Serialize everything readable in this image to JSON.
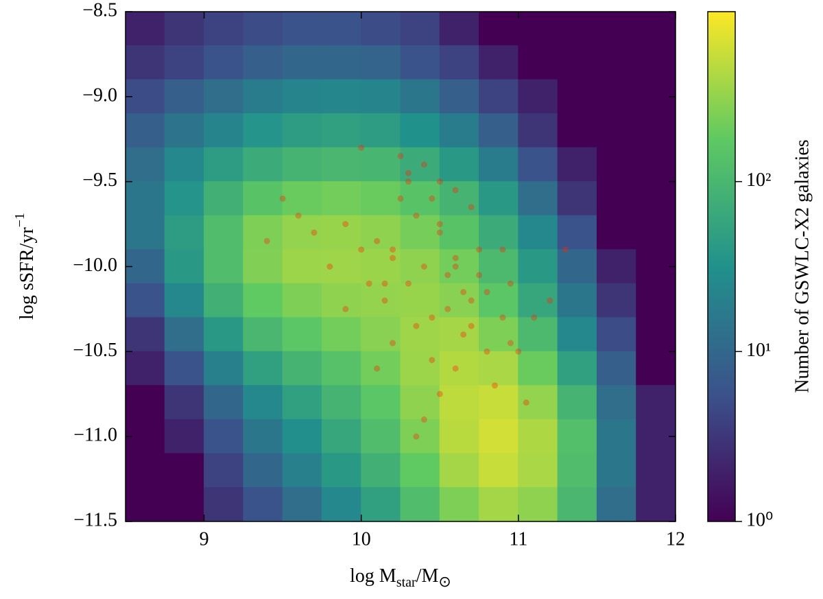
{
  "chart_data": {
    "type": "hexbin",
    "xlabel": [
      "log M",
      "star",
      "/M",
      "⊙"
    ],
    "ylabel": [
      "log sSFR/yr",
      "−1"
    ],
    "xlim": [
      8.5,
      12
    ],
    "ylim": [
      -11.5,
      -8.5
    ],
    "xticks": [
      9,
      10,
      11,
      12
    ],
    "yticks": [
      {
        "value": -8.5,
        "label": "−8.5"
      },
      {
        "value": -9.0,
        "label": "−9.0"
      },
      {
        "value": -9.5,
        "label": "−9.5"
      },
      {
        "value": -10.0,
        "label": "−10.0"
      },
      {
        "value": -10.5,
        "label": "−10.5"
      },
      {
        "value": -11.0,
        "label": "−11.0"
      },
      {
        "value": -11.5,
        "label": "−11.5"
      }
    ],
    "hexbin": {
      "colormap": "viridis",
      "log_scale": true,
      "clim": [
        1,
        1000
      ],
      "x": [
        8.625,
        8.875,
        9.125,
        9.375,
        9.625,
        9.875,
        10.125,
        10.375,
        10.625,
        10.875,
        11.125,
        11.375,
        11.625,
        11.875
      ],
      "y": [
        -8.6,
        -8.8,
        -9.0,
        -9.2,
        -9.4,
        -9.6,
        -9.8,
        -10.0,
        -10.2,
        -10.4,
        -10.6,
        -10.8,
        -11.0,
        -11.2,
        -11.4
      ],
      "counts": [
        [
          2,
          3,
          4,
          5,
          6,
          6,
          5,
          4,
          2,
          1,
          1,
          1,
          1,
          1
        ],
        [
          3,
          4,
          6,
          8,
          10,
          10,
          9,
          6,
          4,
          2,
          1,
          1,
          1,
          1
        ],
        [
          5,
          8,
          12,
          18,
          22,
          24,
          22,
          15,
          8,
          4,
          2,
          1,
          1,
          1
        ],
        [
          8,
          14,
          22,
          35,
          45,
          50,
          45,
          32,
          18,
          8,
          3,
          1,
          1,
          1
        ],
        [
          12,
          25,
          45,
          70,
          90,
          100,
          95,
          70,
          40,
          18,
          6,
          2,
          1,
          1
        ],
        [
          15,
          35,
          80,
          150,
          200,
          220,
          200,
          150,
          90,
          40,
          12,
          3,
          1,
          1
        ],
        [
          15,
          45,
          120,
          250,
          320,
          330,
          300,
          230,
          150,
          70,
          25,
          6,
          1,
          1
        ],
        [
          10,
          40,
          120,
          260,
          350,
          360,
          340,
          300,
          220,
          110,
          40,
          10,
          2,
          1
        ],
        [
          6,
          25,
          80,
          180,
          250,
          300,
          320,
          330,
          280,
          160,
          60,
          15,
          3,
          1
        ],
        [
          3,
          12,
          40,
          100,
          160,
          220,
          280,
          360,
          380,
          250,
          110,
          25,
          5,
          1
        ],
        [
          2,
          6,
          20,
          50,
          90,
          140,
          220,
          350,
          450,
          400,
          200,
          50,
          8,
          1
        ],
        [
          1,
          3,
          10,
          25,
          50,
          90,
          160,
          300,
          500,
          550,
          320,
          90,
          12,
          2
        ],
        [
          1,
          2,
          6,
          15,
          30,
          60,
          120,
          250,
          480,
          620,
          420,
          130,
          15,
          2
        ],
        [
          1,
          1,
          4,
          10,
          20,
          40,
          80,
          180,
          380,
          550,
          400,
          120,
          15,
          2
        ],
        [
          1,
          1,
          3,
          6,
          12,
          25,
          50,
          120,
          250,
          380,
          300,
          100,
          12,
          2
        ]
      ]
    },
    "colorbar": {
      "label": "Number of GSWLC-X2 galaxies",
      "ticks": [
        {
          "value": 1,
          "label": "10⁰"
        },
        {
          "value": 10,
          "label": "10¹"
        },
        {
          "value": 100,
          "label": "10²"
        }
      ]
    },
    "scatter": {
      "color": "#ff2200",
      "opacity": 0.35,
      "x": [
        10.2,
        10.4,
        10.5,
        10.3,
        10.6,
        10.1,
        10.7,
        10.45,
        10.35,
        10.55,
        10.25,
        10.65,
        10.8,
        10.0,
        9.9,
        10.9,
        10.15,
        10.75,
        10.5,
        10.3,
        9.8,
        10.6,
        10.4,
        11.0,
        10.2,
        10.85,
        9.7,
        10.7,
        10.55,
        10.05,
        10.95,
        10.35,
        10.45,
        9.6,
        11.1,
        10.25,
        10.6,
        10.9,
        10.1,
        10.5,
        9.5,
        10.8,
        11.2,
        10.4,
        10.0,
        10.7,
        10.3,
        9.4,
        10.6,
        11.05,
        10.15,
        10.95,
        10.5,
        10.2,
        9.9,
        10.75,
        11.3,
        10.45,
        10.65,
        10.35
      ],
      "y": [
        -9.9,
        -10.0,
        -9.8,
        -10.1,
        -9.95,
        -9.85,
        -10.2,
        -10.3,
        -9.7,
        -10.05,
        -9.6,
        -10.4,
        -10.15,
        -9.9,
        -9.75,
        -10.3,
        -10.2,
        -9.9,
        -9.5,
        -9.5,
        -10.0,
        -10.6,
        -9.4,
        -10.5,
        -10.45,
        -10.7,
        -9.8,
        -9.65,
        -10.25,
        -10.1,
        -10.1,
        -10.35,
        -10.55,
        -9.7,
        -10.3,
        -9.35,
        -9.55,
        -9.9,
        -10.6,
        -10.75,
        -9.6,
        -10.5,
        -10.2,
        -10.9,
        -9.3,
        -10.35,
        -9.45,
        -9.85,
        -10.0,
        -10.8,
        -10.1,
        -10.45,
        -9.75,
        -9.95,
        -10.25,
        -10.05,
        -9.9,
        -9.6,
        -10.15,
        -11.0
      ]
    }
  }
}
